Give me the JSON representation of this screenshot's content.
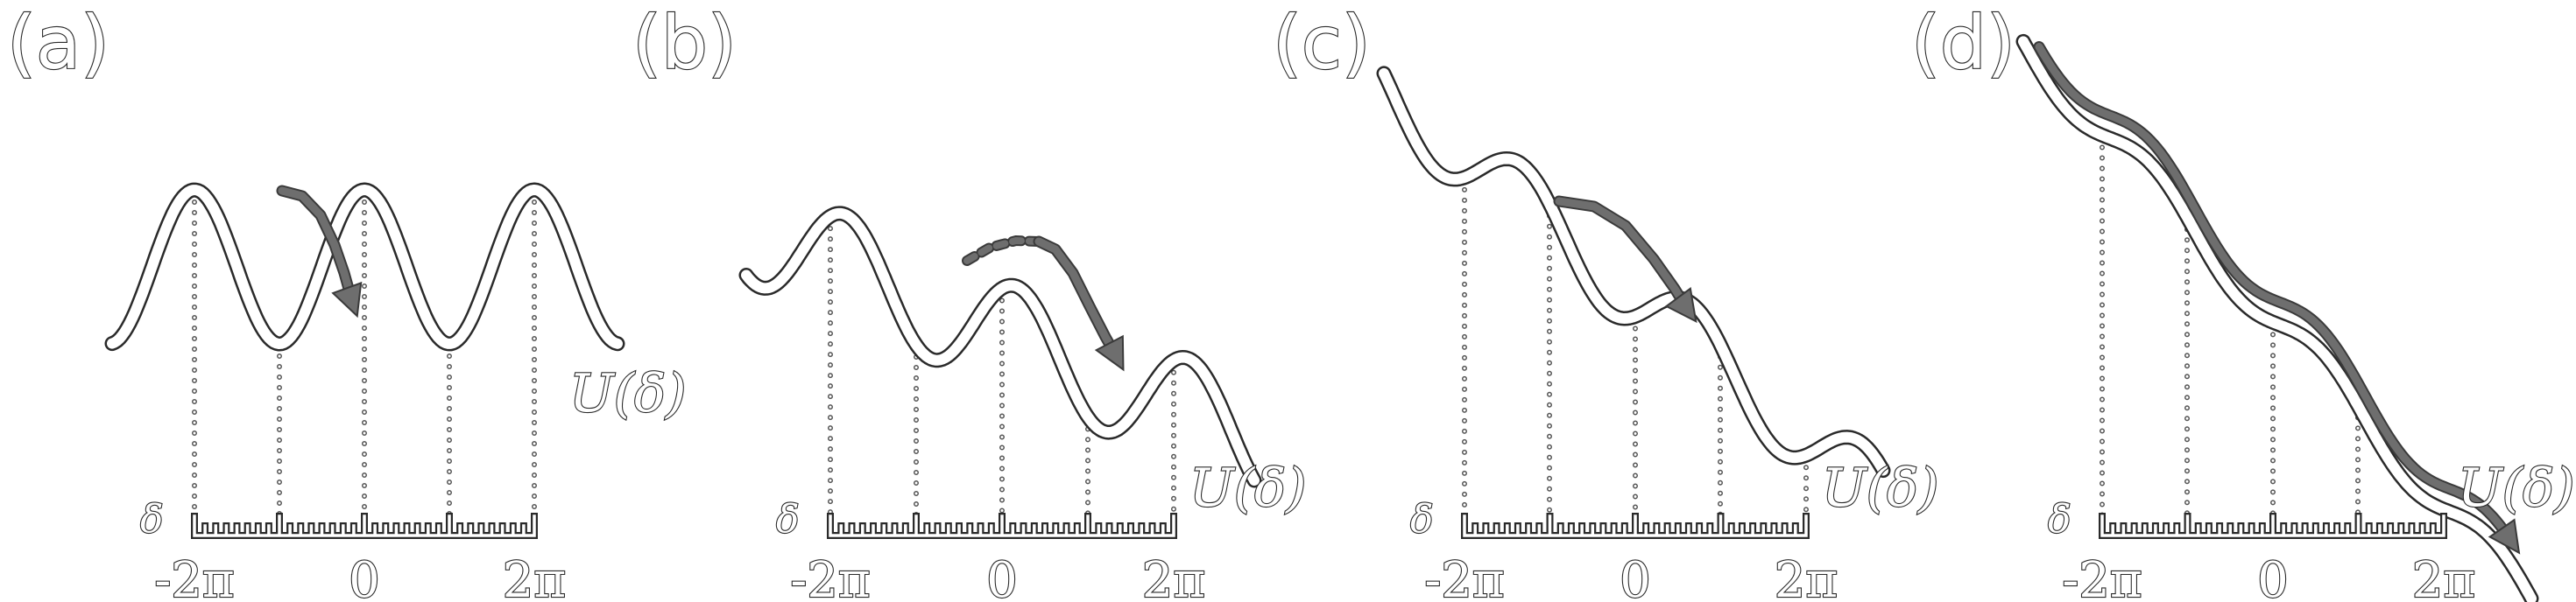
{
  "panels": [
    {
      "label": "(a)",
      "xticks": [
        "-2π",
        "0",
        "2π"
      ],
      "axis_symbol": "δ",
      "potential_label": "U(δ)"
    },
    {
      "label": "(b)",
      "xticks": [
        "-2π",
        "0",
        "2π"
      ],
      "axis_symbol": "δ",
      "potential_label": "U(δ)"
    },
    {
      "label": "(c)",
      "xticks": [
        "-2π",
        "0",
        "2π"
      ],
      "axis_symbol": "δ",
      "potential_label": "U(δ)"
    },
    {
      "label": "(d)",
      "xticks": [
        "-2π",
        "0",
        "2π"
      ],
      "axis_symbol": "δ",
      "potential_label": "U(δ)"
    }
  ],
  "colors": {
    "curve_outline": "#2a2a2a",
    "curve_fill": "#ffffff",
    "arrow": "#6e6e6e",
    "dotted_lines": "#8c8c8c"
  }
}
